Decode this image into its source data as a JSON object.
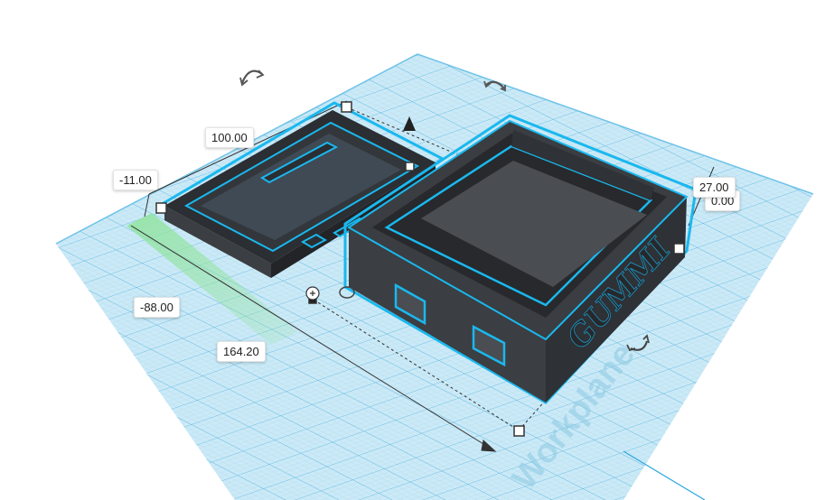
{
  "dimensions": {
    "length": "100.00",
    "offset_y": "-11.00",
    "offset_x": "-88.00",
    "width": "164.20",
    "height": "27.00",
    "elevation": "0.00"
  },
  "workplane": {
    "label": "Workplane",
    "grid_color": "#7ec8e3",
    "plane_color": "#c3e6f4",
    "selection_color": "#1ab8ee"
  },
  "model": {
    "text": "GUMMI",
    "body_color": "#3b3e42"
  },
  "icons": {
    "rotate_top": "rotate-arrow-icon",
    "rotate_side": "rotate-arrow-icon",
    "rotate_corner": "rotate-arrow-icon",
    "lift": "cone-arrow-icon",
    "ruler": "ruler-icon"
  }
}
